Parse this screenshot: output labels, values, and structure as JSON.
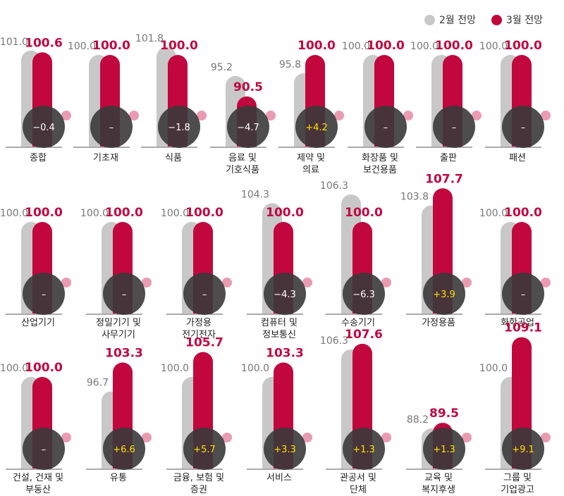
{
  "colors": {
    "feb": "#c8c8c8",
    "mar": "#c1073e",
    "badge": "#3a3a3a",
    "positive": "#ffe000",
    "neutral": "#ffffff",
    "pinkdot": "#e99bb2"
  },
  "legend": {
    "feb_label": "2월 전망",
    "mar_label": "3월 전망"
  },
  "chart_data": {
    "type": "bar",
    "series": [
      {
        "name": "2월 전망"
      },
      {
        "name": "3월 전망"
      }
    ],
    "items": [
      {
        "label": [
          "종합"
        ],
        "feb": "101.0",
        "mar": "100.6",
        "change": "−0.4"
      },
      {
        "label": [
          "기초재"
        ],
        "feb": "100.0",
        "mar": "100.0",
        "change": "–"
      },
      {
        "label": [
          "식품"
        ],
        "feb": "101.8",
        "mar": "100.0",
        "change": "−1.8"
      },
      {
        "label": [
          "음료 및",
          "기호식품"
        ],
        "feb": "95.2",
        "mar": "90.5",
        "change": "−4.7"
      },
      {
        "label": [
          "제약 및",
          "의료"
        ],
        "feb": "95.8",
        "mar": "100.0",
        "change": "+4.2"
      },
      {
        "label": [
          "화장품 및",
          "보건용품"
        ],
        "feb": "100.0",
        "mar": "100.0",
        "change": "–"
      },
      {
        "label": [
          "출판"
        ],
        "feb": "100.0",
        "mar": "100.0",
        "change": "–"
      },
      {
        "label": [
          "패션"
        ],
        "feb": "100.0",
        "mar": "100.0",
        "change": "–"
      },
      {
        "label": [
          "산업기기"
        ],
        "feb": "100.0",
        "mar": "100.0",
        "change": "–"
      },
      {
        "label": [
          "정밀기기 및",
          "사무기기"
        ],
        "feb": "100.0",
        "mar": "100.0",
        "change": "–"
      },
      {
        "label": [
          "가정용",
          "전기전자"
        ],
        "feb": "100.0",
        "mar": "100.0",
        "change": "–"
      },
      {
        "label": [
          "컴퓨터 및",
          "정보통신"
        ],
        "feb": "104.3",
        "mar": "100.0",
        "change": "−4.3"
      },
      {
        "label": [
          "수송기기"
        ],
        "feb": "106.3",
        "mar": "100.0",
        "change": "−6.3"
      },
      {
        "label": [
          "가정용품"
        ],
        "feb": "103.8",
        "mar": "107.7",
        "change": "+3.9"
      },
      {
        "label": [
          "화학공업"
        ],
        "feb": "100.0",
        "mar": "100.0",
        "change": "–"
      },
      {
        "label": [
          "건설, 건재 및",
          "부동산"
        ],
        "feb": "100.0",
        "mar": "100.0",
        "change": "–"
      },
      {
        "label": [
          "유통"
        ],
        "feb": "96.7",
        "mar": "103.3",
        "change": "+6.6"
      },
      {
        "label": [
          "금융, 보험 및",
          "증권"
        ],
        "feb": "100.0",
        "mar": "105.7",
        "change": "+5.7"
      },
      {
        "label": [
          "서비스"
        ],
        "feb": "100.0",
        "mar": "103.3",
        "change": "+3.3"
      },
      {
        "label": [
          "관공서 및",
          "단체"
        ],
        "feb": "106.3",
        "mar": "107.6",
        "change": "+1.3"
      },
      {
        "label": [
          "교육 및",
          "복지후생"
        ],
        "feb": "88.2",
        "mar": "89.5",
        "change": "+1.3"
      },
      {
        "label": [
          "그룹 및",
          "기업광고"
        ],
        "feb": "100.0",
        "mar": "109.1",
        "change": "+9.1"
      }
    ]
  }
}
